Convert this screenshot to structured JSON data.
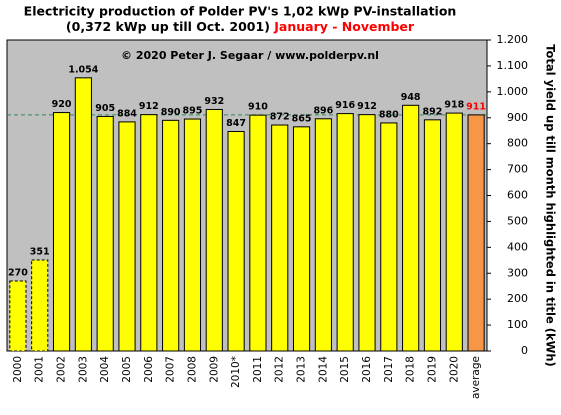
{
  "chart_data": {
    "type": "bar",
    "title": "Electricity production  of Polder  PV's  1,02 kWp PV-installation",
    "subtitle": "(0,372 kWp up till Oct. 2001)",
    "subtitle_highlight": "January - November",
    "annotation": "© 2020 Peter J. Segaar / www.polderpv.nl",
    "y_axis_label": "Total yield up till month highlighted in title (kWh)",
    "categories": [
      "2000",
      "2001",
      "2002",
      "2003",
      "2004",
      "2005",
      "2006",
      "2007",
      "2008",
      "2009",
      "2010*",
      "2011",
      "2012",
      "2013",
      "2014",
      "2015",
      "2016",
      "2017",
      "2018",
      "2019",
      "2020",
      "average"
    ],
    "values": [
      270,
      351,
      920,
      1054,
      905,
      884,
      912,
      890,
      895,
      932,
      847,
      910,
      872,
      865,
      896,
      916,
      912,
      880,
      948,
      892,
      918,
      911
    ],
    "value_labels": [
      "270",
      "351",
      "920",
      "1.054",
      "905",
      "884",
      "912",
      "890",
      "895",
      "932",
      "847",
      "910",
      "872",
      "865",
      "896",
      "916",
      "912",
      "880",
      "948",
      "892",
      "918",
      "911"
    ],
    "bar_colors": [
      "#ffff00",
      "#ffff00",
      "#ffff00",
      "#ffff00",
      "#ffff00",
      "#ffff00",
      "#ffff00",
      "#ffff00",
      "#ffff00",
      "#ffff00",
      "#ffff00",
      "#ffff00",
      "#ffff00",
      "#ffff00",
      "#ffff00",
      "#ffff00",
      "#ffff00",
      "#ffff00",
      "#ffff00",
      "#ffff00",
      "#ffff00",
      "#f79646"
    ],
    "dashed": [
      true,
      true,
      false,
      false,
      false,
      false,
      false,
      false,
      false,
      false,
      false,
      false,
      false,
      false,
      false,
      false,
      false,
      false,
      false,
      false,
      false,
      false
    ],
    "average_label_color": "#ff0000",
    "reference_line_color": "#2e8b57",
    "ylim": [
      0,
      1200
    ],
    "yticks": [
      0,
      100,
      200,
      300,
      400,
      500,
      600,
      700,
      800,
      900,
      {
        "value": 1000,
        "label": "1.000"
      },
      {
        "value": 1100,
        "label": "1.100"
      },
      {
        "value": 1200,
        "label": "1.200"
      }
    ],
    "grid": false
  }
}
